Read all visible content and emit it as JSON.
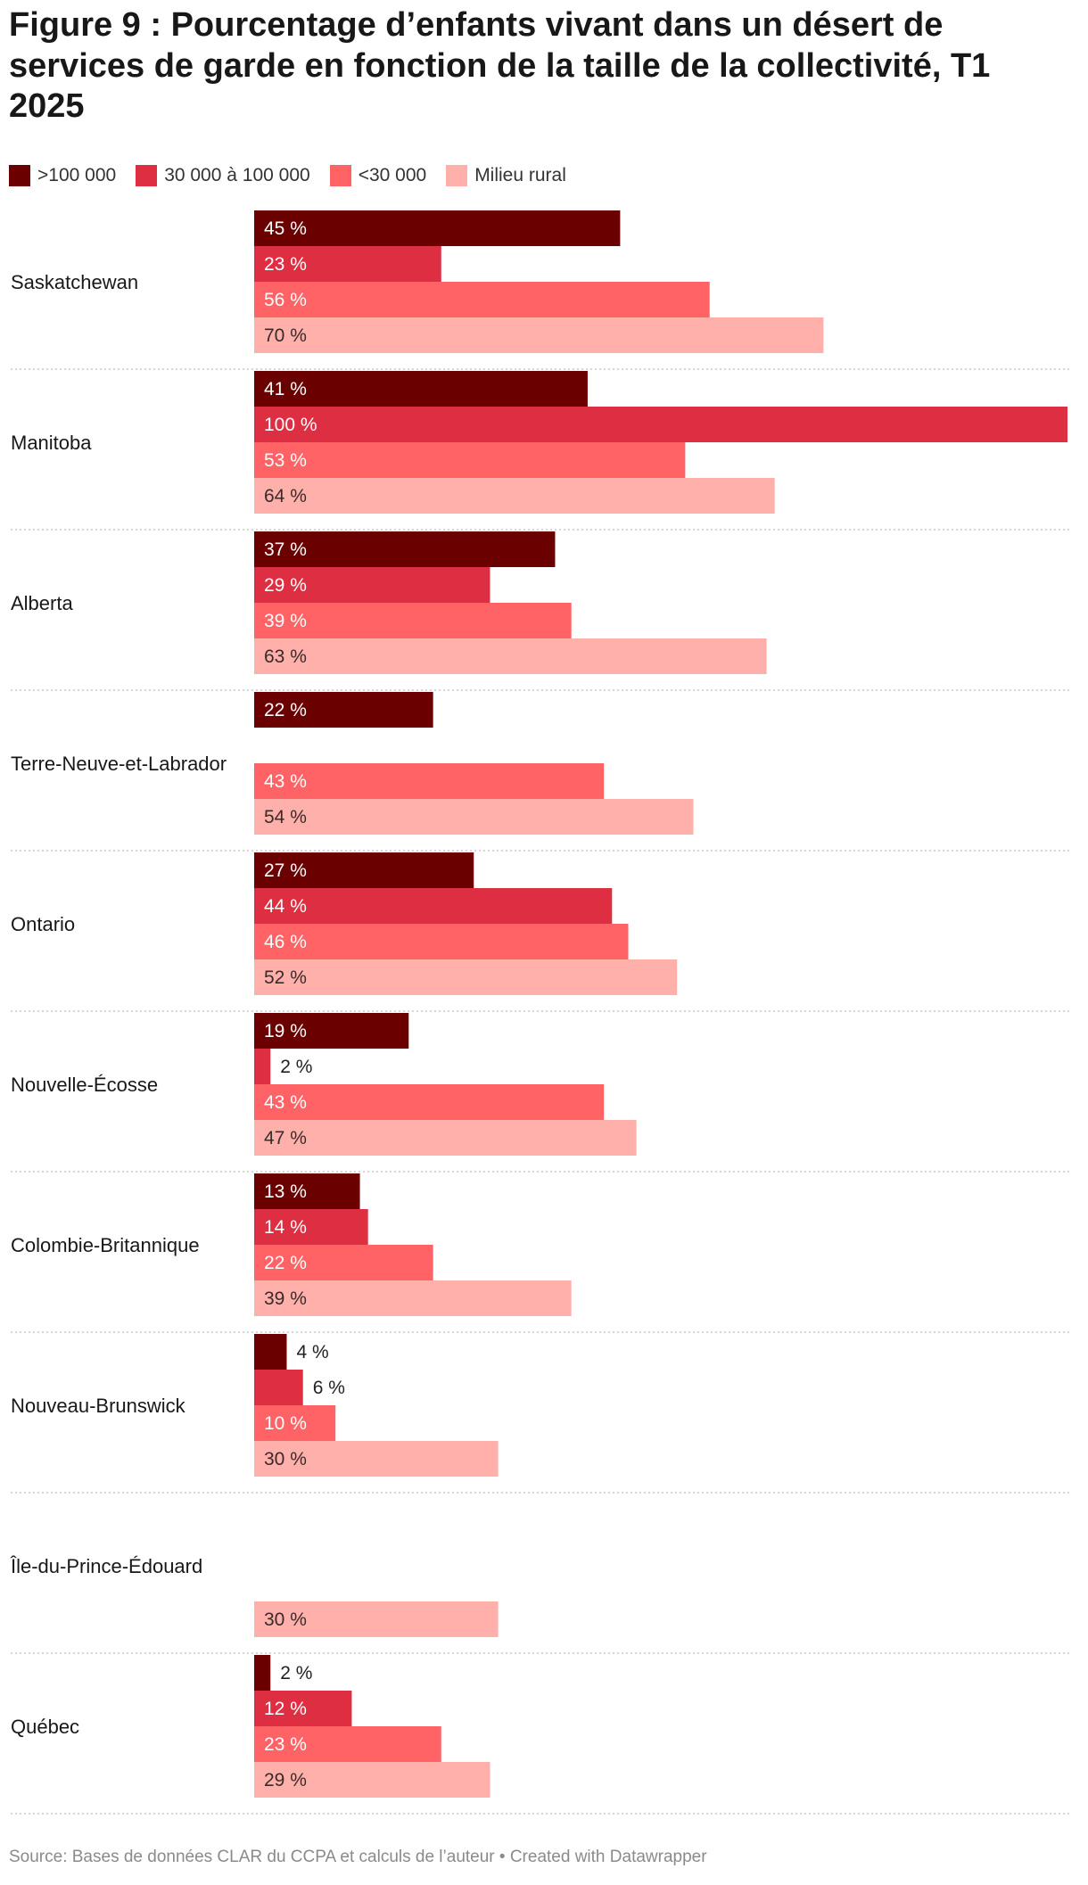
{
  "title": "Figure 9 : Pourcentage d’enfants vivant dans un désert de services de garde en fonction de la taille de la collectivité, T1 2025",
  "source": "Source: Bases de données CLAR du CCPA et calculs de l’auteur • Created with Datawrapper",
  "colors": {
    "series_1": "#6b0000",
    "series_2": "#de2f42",
    "series_3": "#ff6366",
    "series_4": "#ffb0aa",
    "separator": "#c8c8c8",
    "text": "#181818"
  },
  "chart_data": {
    "type": "bar",
    "orientation": "horizontal",
    "title": "Figure 9 : Pourcentage d’enfants vivant dans un désert de services de garde en fonction de la taille de la collectivité, T1 2025",
    "xlim": [
      0,
      100
    ],
    "unit": "%",
    "legend_position": "top-left",
    "categories": [
      "Saskatchewan",
      "Manitoba",
      "Alberta",
      "Terre-Neuve-et-Labrador",
      "Ontario",
      "Nouvelle-Écosse",
      "Colombie-Britannique",
      "Nouveau-Brunswick",
      "Île-du-Prince-Édouard",
      "Québec"
    ],
    "series": [
      {
        "name": ">100 000",
        "values": [
          45,
          41,
          37,
          22,
          27,
          19,
          13,
          4,
          null,
          2
        ]
      },
      {
        "name": "30 000 à 100 000",
        "values": [
          23,
          100,
          29,
          null,
          44,
          2,
          14,
          6,
          null,
          12
        ]
      },
      {
        "name": "<30 000",
        "values": [
          56,
          53,
          39,
          43,
          46,
          43,
          22,
          10,
          null,
          23
        ]
      },
      {
        "name": "Milieu rural",
        "values": [
          70,
          64,
          63,
          54,
          52,
          47,
          39,
          30,
          30,
          29
        ]
      }
    ]
  }
}
